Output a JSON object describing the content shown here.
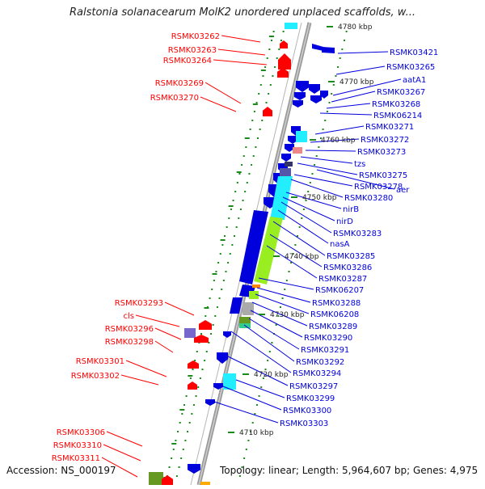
{
  "title": "Ralstonia solanacearum MolK2 unordered unplaced scaffolds, w...",
  "footer": {
    "accession": "Accession: NS_000197",
    "topology": "Topology: linear; Length: 5,964,607 bp; Genes: 4,975"
  },
  "colors": {
    "forward": "#ff0000",
    "reverse": "#0000dd",
    "cyan": "#22eeff",
    "lime": "#99ee22",
    "purple": "#7766cc",
    "olive": "#669922",
    "backbone": "#9a9a9a",
    "tick": "#1a8a1a"
  },
  "scale_labels": [
    "4780 kbp",
    "4770 kbp",
    "4760 kbp",
    "4750 kbp",
    "4740 kbp",
    "4730 kbp",
    "4720 kbp",
    "4710 kbp"
  ],
  "left_labels": [
    "RSMK03262",
    "RSMK03263",
    "RSMK03264",
    "RSMK03269",
    "RSMK03270",
    "RSMK03293",
    "cls",
    "RSMK03296",
    "RSMK03298",
    "RSMK03301",
    "RSMK03302",
    "RSMK03306",
    "RSMK03310",
    "RSMK03311"
  ],
  "right_labels": [
    "RSMK03421",
    "RSMK03265",
    "aatA1",
    "RSMK03267",
    "RSMK03268",
    "RSMK06214",
    "RSMK03271",
    "RSMK03272",
    "RSMK03273",
    "tzs",
    "RSMK03275",
    "aer",
    "RSMK03278",
    "RSMK03280",
    "nirB",
    "nirD",
    "RSMK03283",
    "nasA",
    "RSMK03285",
    "RSMK03286",
    "RSMK03287",
    "RSMK06207",
    "RSMK03288",
    "RSMK06208",
    "RSMK03289",
    "RSMK03290",
    "RSMK03291",
    "RSMK03292",
    "RSMK03294",
    "RSMK03297",
    "RSMK03299",
    "RSMK03300",
    "RSMK03303"
  ]
}
